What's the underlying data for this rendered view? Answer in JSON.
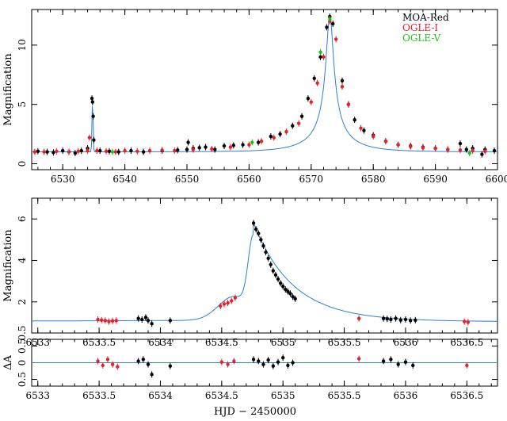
{
  "chart_data": [
    {
      "type": "scatter",
      "panel": "light-curve",
      "xlabel": "",
      "ylabel": "Magnification",
      "xlim": [
        6525,
        6600
      ],
      "ylim": [
        -0.5,
        13
      ],
      "xticks": [
        "6530",
        "6540",
        "6550",
        "6560",
        "6570",
        "6580",
        "6590",
        "6600"
      ],
      "yticks": [
        "0",
        "5",
        "10"
      ],
      "legend_position": "top-right",
      "legend": [
        "MOA-Red",
        "OGLE-I",
        "OGLE-V"
      ],
      "model": {
        "name": "",
        "color": "#2a7fd6",
        "t0": 6573.0,
        "u0": 0.08,
        "tE": 7.5,
        "anomaly": {
          "t": 6534.8,
          "height": 4.6,
          "width": 0.12
        }
      },
      "series": [
        {
          "name": "MOA-Red",
          "color": "#000000",
          "points": [
            [
              6526,
              1.05
            ],
            [
              6527.5,
              1.0
            ],
            [
              6528.5,
              0.95
            ],
            [
              6530,
              1.1
            ],
            [
              6531,
              1.0
            ],
            [
              6532,
              0.9
            ],
            [
              6533,
              1.1
            ],
            [
              6534,
              1.3
            ],
            [
              6534.7,
              5.5
            ],
            [
              6534.8,
              5.2
            ],
            [
              6534.9,
              4.0
            ],
            [
              6535,
              2.0
            ],
            [
              6536,
              1.1
            ],
            [
              6537.5,
              1.05
            ],
            [
              6539,
              1.0
            ],
            [
              6541,
              1.1
            ],
            [
              6543,
              1.0
            ],
            [
              6546,
              1.1
            ],
            [
              6548.5,
              1.15
            ],
            [
              6550,
              1.2
            ],
            [
              6550.2,
              1.8
            ],
            [
              6551,
              1.3
            ],
            [
              6552,
              1.35
            ],
            [
              6553,
              1.4
            ],
            [
              6554.5,
              1.2
            ],
            [
              6556,
              1.5
            ],
            [
              6557.5,
              1.55
            ],
            [
              6559,
              1.6
            ],
            [
              6561.5,
              1.8
            ],
            [
              6563.5,
              2.3
            ],
            [
              6565,
              2.5
            ],
            [
              6567,
              3.2
            ],
            [
              6568.5,
              4.0
            ],
            [
              6569.5,
              5.5
            ],
            [
              6570.5,
              7.2
            ],
            [
              6571.5,
              9.0
            ],
            [
              6572.5,
              11.5
            ],
            [
              6573,
              12.4
            ],
            [
              6573.5,
              11.8
            ],
            [
              6575,
              7.0
            ],
            [
              6576,
              5.0
            ],
            [
              6577,
              3.7
            ],
            [
              6578.5,
              2.8
            ],
            [
              6580,
              2.4
            ],
            [
              6582,
              1.9
            ],
            [
              6584,
              1.6
            ],
            [
              6586,
              1.5
            ],
            [
              6588,
              1.4
            ],
            [
              6590,
              1.3
            ],
            [
              6592,
              1.2
            ],
            [
              6594,
              1.7
            ],
            [
              6595,
              1.2
            ],
            [
              6596,
              1.3
            ],
            [
              6597.5,
              0.8
            ],
            [
              6598,
              1.2
            ],
            [
              6599.5,
              1.1
            ]
          ]
        },
        {
          "name": "OGLE-I",
          "color": "#e8202a",
          "points": [
            [
              6525.5,
              1.0
            ],
            [
              6527,
              1.0
            ],
            [
              6529,
              1.05
            ],
            [
              6531,
              1.0
            ],
            [
              6532.5,
              1.05
            ],
            [
              6534,
              1.1
            ],
            [
              6534.3,
              2.2
            ],
            [
              6535.5,
              1.1
            ],
            [
              6537,
              1.05
            ],
            [
              6538.5,
              1.0
            ],
            [
              6540,
              1.1
            ],
            [
              6542,
              1.05
            ],
            [
              6544,
              1.1
            ],
            [
              6546,
              1.15
            ],
            [
              6548,
              1.1
            ],
            [
              6551,
              1.2
            ],
            [
              6554,
              1.25
            ],
            [
              6557,
              1.4
            ],
            [
              6560,
              1.6
            ],
            [
              6562,
              1.9
            ],
            [
              6564,
              2.2
            ],
            [
              6566,
              2.7
            ],
            [
              6568,
              3.4
            ],
            [
              6570,
              5.2
            ],
            [
              6571,
              6.8
            ],
            [
              6572,
              9.0
            ],
            [
              6573,
              12.0
            ],
            [
              6574,
              10.5
            ],
            [
              6575,
              6.5
            ],
            [
              6576,
              5.0
            ],
            [
              6578,
              3.0
            ],
            [
              6580,
              2.3
            ],
            [
              6582,
              1.9
            ],
            [
              6584,
              1.6
            ],
            [
              6586,
              1.45
            ],
            [
              6588,
              1.35
            ],
            [
              6590,
              1.3
            ],
            [
              6592,
              1.2
            ],
            [
              6594,
              1.15
            ],
            [
              6596,
              1.1
            ],
            [
              6598,
              1.05
            ]
          ]
        },
        {
          "name": "OGLE-V",
          "color": "#22c01e",
          "points": [
            [
              6538,
              1.0
            ],
            [
              6560.5,
              1.8
            ],
            [
              6571.5,
              9.4
            ],
            [
              6573,
              12.2
            ],
            [
              6595.5,
              0.9
            ]
          ]
        }
      ]
    },
    {
      "type": "scatter",
      "panel": "anomaly-zoom",
      "xlabel": "",
      "ylabel": "Magnification",
      "xlim": [
        6532.95,
        6536.75
      ],
      "ylim": [
        0.5,
        7
      ],
      "xticks": [
        "6533",
        "6533.5",
        "6534",
        "6534.5",
        "6535",
        "6535.5",
        "6536",
        "6536.5"
      ],
      "yticks": [
        "0.5",
        "2",
        "4",
        "6"
      ],
      "series": [
        {
          "name": "MOA-Red",
          "color": "#000000",
          "points": [
            [
              6533.82,
              1.2
            ],
            [
              6533.85,
              1.15
            ],
            [
              6533.88,
              1.25
            ],
            [
              6533.9,
              1.1
            ],
            [
              6533.93,
              0.95
            ],
            [
              6534.08,
              1.1
            ],
            [
              6534.76,
              5.8
            ],
            [
              6534.78,
              5.5
            ],
            [
              6534.8,
              5.3
            ],
            [
              6534.82,
              5.0
            ],
            [
              6534.84,
              4.7
            ],
            [
              6534.86,
              4.4
            ],
            [
              6534.88,
              4.1
            ],
            [
              6534.9,
              3.8
            ],
            [
              6534.92,
              3.5
            ],
            [
              6534.94,
              3.3
            ],
            [
              6534.96,
              3.1
            ],
            [
              6534.98,
              2.9
            ],
            [
              6535,
              2.75
            ],
            [
              6535.02,
              2.6
            ],
            [
              6535.04,
              2.5
            ],
            [
              6535.06,
              2.4
            ],
            [
              6535.08,
              2.25
            ],
            [
              6535.1,
              2.15
            ],
            [
              6535.82,
              1.2
            ],
            [
              6535.85,
              1.18
            ],
            [
              6535.88,
              1.15
            ],
            [
              6535.92,
              1.2
            ],
            [
              6535.96,
              1.12
            ],
            [
              6536,
              1.15
            ],
            [
              6536.04,
              1.1
            ],
            [
              6536.08,
              1.12
            ]
          ]
        },
        {
          "name": "OGLE-I",
          "color": "#e8202a",
          "points": [
            [
              6533.49,
              1.15
            ],
            [
              6533.52,
              1.12
            ],
            [
              6533.55,
              1.1
            ],
            [
              6533.58,
              1.05
            ],
            [
              6533.61,
              1.08
            ],
            [
              6533.64,
              1.1
            ],
            [
              6534.49,
              1.8
            ],
            [
              6534.52,
              1.9
            ],
            [
              6534.55,
              1.95
            ],
            [
              6534.58,
              2.05
            ],
            [
              6534.61,
              2.2
            ],
            [
              6535.62,
              1.2
            ],
            [
              6536.48,
              1.05
            ],
            [
              6536.51,
              1.02
            ]
          ]
        }
      ]
    },
    {
      "type": "scatter",
      "panel": "residuals",
      "xlabel": "HJD − 2450000",
      "ylabel": "ΔA",
      "xlim": [
        6532.95,
        6536.75
      ],
      "ylim": [
        -0.7,
        0.7
      ],
      "xticks": [
        "6533",
        "6533.5",
        "6534",
        "6534.5",
        "6535",
        "6535.5",
        "6536",
        "6536.5"
      ],
      "yticks": [
        "0.5",
        "0",
        "0.5"
      ],
      "series": [
        {
          "name": "MOA-Red",
          "color": "#000000",
          "points": [
            [
              6533.82,
              0.05
            ],
            [
              6533.86,
              0.1
            ],
            [
              6533.9,
              -0.05
            ],
            [
              6533.93,
              -0.35
            ],
            [
              6534.08,
              -0.1
            ],
            [
              6534.76,
              0.1
            ],
            [
              6534.8,
              0.05
            ],
            [
              6534.84,
              -0.05
            ],
            [
              6534.88,
              0.08
            ],
            [
              6534.92,
              -0.1
            ],
            [
              6534.96,
              0.02
            ],
            [
              6535,
              0.15
            ],
            [
              6535.04,
              -0.08
            ],
            [
              6535.08,
              0.0
            ],
            [
              6535.82,
              0.05
            ],
            [
              6535.88,
              0.1
            ],
            [
              6535.94,
              -0.05
            ],
            [
              6536,
              0.02
            ],
            [
              6536.06,
              -0.08
            ]
          ]
        },
        {
          "name": "OGLE-I",
          "color": "#e8202a",
          "points": [
            [
              6533.49,
              0.05
            ],
            [
              6533.53,
              -0.08
            ],
            [
              6533.57,
              0.1
            ],
            [
              6533.61,
              -0.05
            ],
            [
              6533.65,
              -0.12
            ],
            [
              6534.5,
              0.02
            ],
            [
              6534.55,
              -0.05
            ],
            [
              6534.6,
              0.05
            ],
            [
              6535.62,
              0.12
            ],
            [
              6536.5,
              -0.08
            ]
          ]
        }
      ]
    }
  ]
}
